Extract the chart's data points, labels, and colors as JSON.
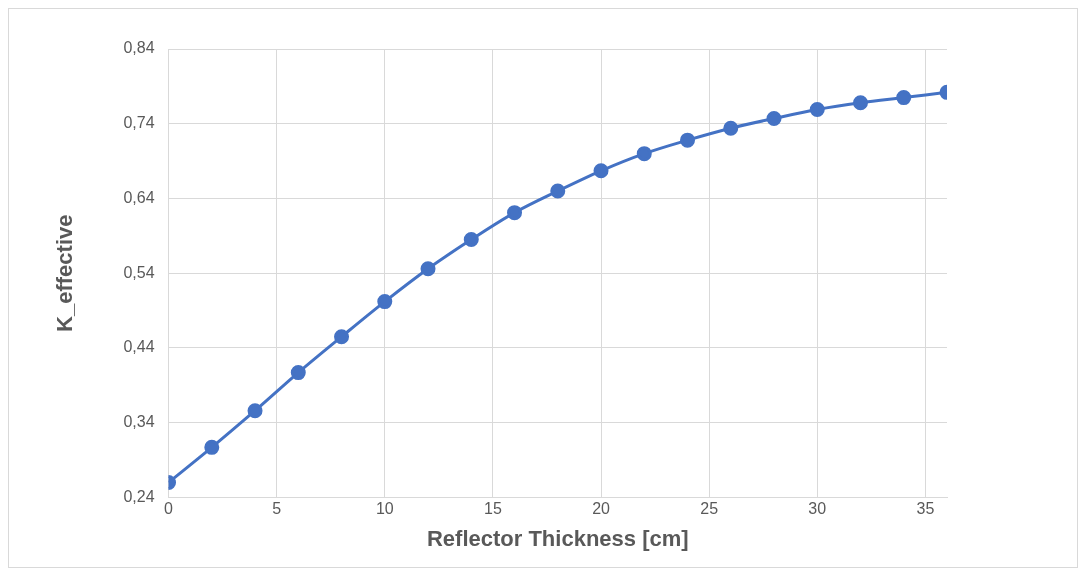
{
  "chart_data": {
    "type": "line",
    "xlabel": "Reflector Thickness [cm]",
    "ylabel": "K_effective",
    "x": [
      0,
      2,
      4,
      6,
      8,
      10,
      12,
      14,
      16,
      18,
      20,
      22,
      24,
      26,
      28,
      30,
      32,
      34,
      36
    ],
    "series": [
      {
        "color": "#4472c4",
        "values": [
          0.26,
          0.307,
          0.356,
          0.407,
          0.455,
          0.502,
          0.546,
          0.585,
          0.621,
          0.65,
          0.677,
          0.7,
          0.718,
          0.734,
          0.747,
          0.759,
          0.768,
          0.775,
          0.782
        ]
      }
    ],
    "xlim": [
      0,
      36
    ],
    "xticks": [
      0,
      5,
      10,
      15,
      20,
      25,
      30,
      35
    ],
    "ylim": [
      0.24,
      0.84
    ],
    "yticks": [
      {
        "value": 0.24,
        "label": "0,24"
      },
      {
        "value": 0.34,
        "label": "0,34"
      },
      {
        "value": 0.44,
        "label": "0,44"
      },
      {
        "value": 0.54,
        "label": "0,54"
      },
      {
        "value": 0.64,
        "label": "0,64"
      },
      {
        "value": 0.74,
        "label": "0,74"
      },
      {
        "value": 0.84,
        "label": "0,84"
      }
    ],
    "grid": true,
    "marker": "circle",
    "line_style": "solid",
    "legend": false
  }
}
